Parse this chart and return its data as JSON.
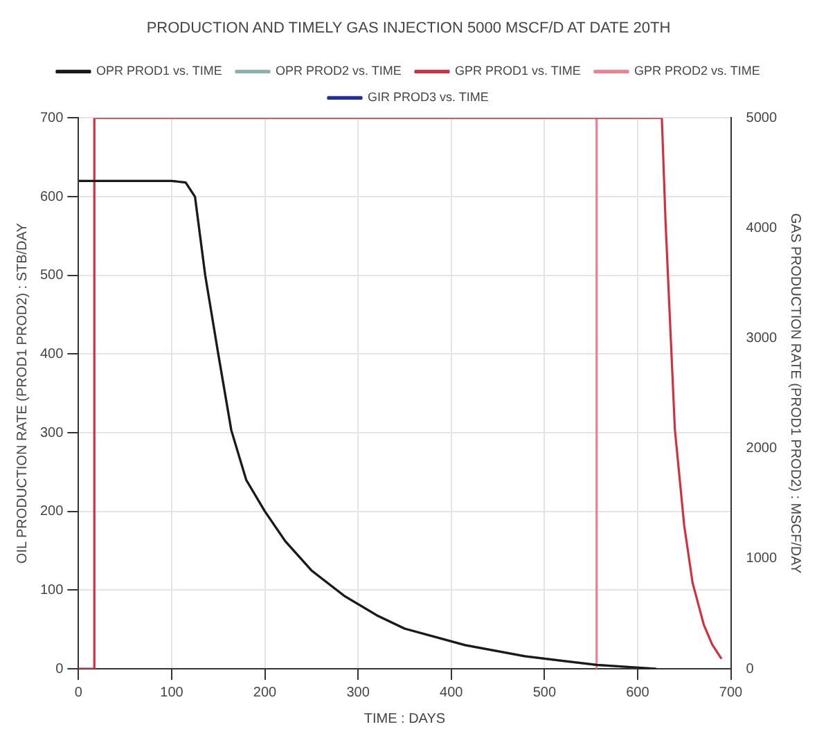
{
  "chart_data": {
    "type": "line",
    "title": "PRODUCTION AND TIMELY GAS INJECTION 5000 MSCF/D AT DATE 20TH",
    "xlabel": "TIME : DAYS",
    "ylabel": "OIL PRODUCTION RATE (PROD1 PROD2) : STB/DAY",
    "y2label": "GAS PRODUCTION RATE (PROD1 PROD2) : MSCF/DAY",
    "xlim": [
      0,
      700
    ],
    "xticks": [
      0,
      100,
      200,
      300,
      400,
      500,
      600,
      700
    ],
    "ylim": [
      0,
      700
    ],
    "yticks": [
      0,
      100,
      200,
      300,
      400,
      500,
      600,
      700
    ],
    "y2lim": [
      0,
      5000
    ],
    "y2ticks": [
      0,
      1000,
      2000,
      3000,
      4000,
      5000
    ],
    "grid": true,
    "legend": "top",
    "marker": "none",
    "line_style": "solid",
    "series": [
      {
        "name": "OPR PROD1 vs. TIME",
        "color": "#1a1a1a",
        "x": [
          0,
          100,
          115,
          125,
          136,
          150,
          164,
          180,
          200,
          222,
          250,
          286,
          320,
          350,
          415,
          479,
          520,
          556,
          620
        ],
        "values": [
          620,
          620,
          618,
          600,
          500,
          400,
          303,
          240,
          200,
          162,
          125,
          92,
          68,
          51,
          30,
          16,
          10,
          5,
          0
        ]
      },
      {
        "name": "OPR PROD2 vs. TIME",
        "color": "#8fb0a8",
        "x": [
          0,
          100,
          115,
          125,
          136,
          150,
          164,
          180,
          200,
          222,
          250,
          286,
          320,
          350,
          415,
          479,
          520,
          556,
          620
        ],
        "values": [
          620,
          620,
          618,
          600,
          500,
          400,
          303,
          240,
          200,
          162,
          125,
          92,
          68,
          51,
          30,
          16,
          10,
          5,
          0
        ]
      },
      {
        "name": "GPR PROD1 vs. TIME",
        "color": "#d03040",
        "axis": "y2",
        "x": [
          0,
          17,
          17,
          626,
          630,
          640,
          650,
          659,
          671,
          680,
          690
        ],
        "values": [
          0,
          0,
          5000,
          5000,
          4050,
          2170,
          1300,
          780,
          400,
          220,
          90
        ]
      },
      {
        "name": "GPR PROD2 vs. TIME",
        "color": "#f08090",
        "axis": "y2",
        "x": [
          556,
          556
        ],
        "values": [
          0,
          5000
        ]
      },
      {
        "name": "GIR PROD3 vs. TIME",
        "color": "#2030a0",
        "axis": "y2"
      }
    ]
  }
}
